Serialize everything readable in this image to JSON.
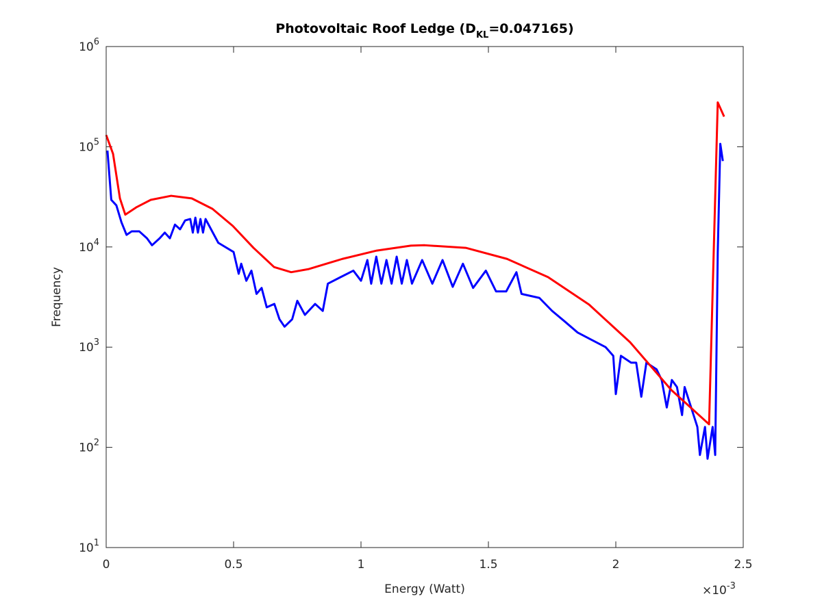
{
  "chart_data": {
    "type": "line",
    "title_parts": [
      "Photovoltaic Roof Ledge (D",
      "KL",
      "=0.047165)"
    ],
    "xlabel": "Energy (Watt)",
    "ylabel": "Frequency",
    "x_multiplier": {
      "base": "×10",
      "exponent": "-3"
    },
    "xlim": [
      0,
      2.5
    ],
    "xticks": [
      0,
      0.5,
      1,
      1.5,
      2,
      2.5
    ],
    "ylim": [
      10,
      1000000
    ],
    "yscale": "log",
    "yticks": [
      {
        "value": 10,
        "label": {
          "base": "10",
          "exponent": "1"
        }
      },
      {
        "value": 100,
        "label": {
          "base": "10",
          "exponent": "2"
        }
      },
      {
        "value": 1000,
        "label": {
          "base": "10",
          "exponent": "3"
        }
      },
      {
        "value": 10000,
        "label": {
          "base": "10",
          "exponent": "4"
        }
      },
      {
        "value": 100000,
        "label": {
          "base": "10",
          "exponent": "5"
        }
      },
      {
        "value": 1000000,
        "label": {
          "base": "10",
          "exponent": "6"
        }
      }
    ],
    "series": [
      {
        "color": "#0000ff",
        "x": [
          0.005,
          0.02,
          0.04,
          0.06,
          0.08,
          0.1,
          0.13,
          0.16,
          0.18,
          0.21,
          0.23,
          0.25,
          0.27,
          0.29,
          0.31,
          0.33,
          0.34,
          0.35,
          0.36,
          0.37,
          0.38,
          0.39,
          0.44,
          0.5,
          0.52,
          0.53,
          0.55,
          0.57,
          0.59,
          0.61,
          0.63,
          0.66,
          0.68,
          0.7,
          0.73,
          0.75,
          0.78,
          0.82,
          0.85,
          0.87,
          0.92,
          0.97,
          1.0,
          1.025,
          1.04,
          1.06,
          1.08,
          1.1,
          1.12,
          1.14,
          1.16,
          1.18,
          1.2,
          1.24,
          1.28,
          1.32,
          1.36,
          1.4,
          1.44,
          1.49,
          1.53,
          1.57,
          1.61,
          1.63,
          1.7,
          1.75,
          1.8,
          1.85,
          1.9,
          1.96,
          1.99,
          2.0,
          2.02,
          2.06,
          2.08,
          2.1,
          2.12,
          2.16,
          2.18,
          2.2,
          2.22,
          2.24,
          2.26,
          2.27,
          2.32,
          2.33,
          2.35,
          2.36,
          2.38,
          2.39,
          2.4,
          2.41,
          2.42
        ],
        "values": [
          91600,
          29500,
          26000,
          17600,
          13200,
          14300,
          14300,
          12200,
          10400,
          12200,
          13900,
          12200,
          16700,
          15000,
          18400,
          19000,
          13900,
          19600,
          13900,
          19000,
          13900,
          19000,
          11000,
          8900,
          5400,
          6800,
          4600,
          5800,
          3400,
          3900,
          2500,
          2700,
          1900,
          1600,
          1900,
          2900,
          2100,
          2700,
          2300,
          4300,
          5000,
          5800,
          4600,
          7400,
          4300,
          8000,
          4300,
          7400,
          4300,
          8000,
          4300,
          7400,
          4300,
          7400,
          4300,
          7400,
          4000,
          6800,
          3900,
          5800,
          3600,
          3600,
          5600,
          3400,
          3100,
          2300,
          1800,
          1400,
          1200,
          1000,
          820,
          340,
          820,
          700,
          700,
          320,
          700,
          600,
          470,
          250,
          470,
          400,
          210,
          400,
          160,
          84,
          160,
          77,
          160,
          84,
          8700,
          107000,
          72000
        ]
      },
      {
        "color": "#ff0000",
        "x": [
          0,
          0.027,
          0.054,
          0.075,
          0.12,
          0.175,
          0.255,
          0.336,
          0.417,
          0.497,
          0.578,
          0.659,
          0.726,
          0.793,
          0.927,
          1.062,
          1.196,
          1.25,
          1.411,
          1.573,
          1.734,
          1.895,
          2.056,
          2.218,
          2.366,
          2.4,
          2.425
        ],
        "values": [
          131000,
          85000,
          30500,
          21000,
          25000,
          29500,
          32400,
          30500,
          24000,
          16200,
          9800,
          6300,
          5600,
          6000,
          7600,
          9200,
          10300,
          10400,
          9800,
          7600,
          5000,
          2660,
          1120,
          373,
          170,
          277000,
          200000
        ]
      }
    ]
  }
}
